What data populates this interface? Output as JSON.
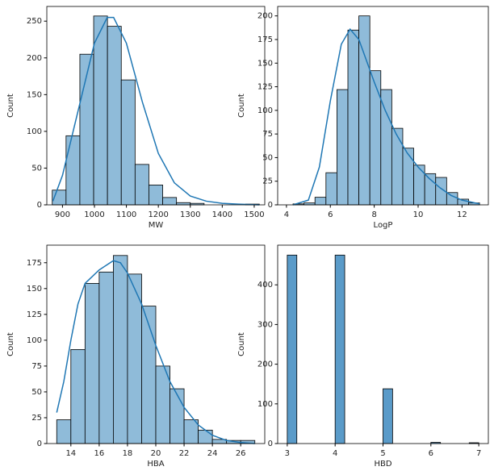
{
  "chart_data": [
    {
      "type": "histogram",
      "x_label": "MW",
      "y_label": "Count",
      "color": "#8fbbd9",
      "line_color": "#1f77b4",
      "bins": [
        868,
        911.2,
        954.4,
        997.6,
        1040.8,
        1084,
        1127.2,
        1170.4,
        1213.6,
        1256.8,
        1300,
        1343.2,
        1386.4,
        1429.6,
        1472.8,
        1516
      ],
      "values": [
        20,
        94,
        205,
        257,
        243,
        170,
        55,
        27,
        10,
        3,
        2,
        0,
        0,
        0,
        1
      ],
      "kde": {
        "x": [
          870,
          900,
          950,
          1000,
          1040,
          1060,
          1100,
          1150,
          1200,
          1250,
          1300,
          1350,
          1400,
          1450,
          1516
        ],
        "values": [
          5,
          40,
          130,
          220,
          255,
          255,
          220,
          140,
          70,
          30,
          12,
          5,
          2,
          1,
          0
        ]
      },
      "xlim": [
        851,
        1533
      ],
      "ylim": [
        0,
        270
      ],
      "xticks": [
        900,
        1000,
        1100,
        1200,
        1300,
        1400,
        1500
      ],
      "yticks": [
        0,
        50,
        100,
        150,
        200,
        250
      ]
    },
    {
      "type": "histogram",
      "x_label": "LogP",
      "y_label": "Count",
      "color": "#8fbbd9",
      "line_color": "#1f77b4",
      "bins": [
        4.3,
        4.8,
        5.3,
        5.8,
        6.3,
        6.8,
        7.3,
        7.8,
        8.3,
        8.8,
        9.3,
        9.8,
        10.3,
        10.8,
        11.3,
        11.8,
        12.3,
        12.8
      ],
      "values": [
        1,
        2,
        8,
        34,
        122,
        185,
        200,
        142,
        122,
        81,
        60,
        42,
        33,
        29,
        13,
        6,
        2
      ],
      "kde": {
        "x": [
          4.3,
          5,
          5.5,
          6,
          6.5,
          6.9,
          7.3,
          8,
          8.5,
          9,
          9.5,
          10,
          10.5,
          11,
          11.5,
          12,
          12.8
        ],
        "values": [
          0,
          5,
          40,
          110,
          170,
          186,
          175,
          130,
          100,
          75,
          55,
          40,
          28,
          18,
          10,
          5,
          1
        ]
      },
      "xlim": [
        3.6,
        13.2
      ],
      "ylim": [
        0,
        210
      ],
      "xticks": [
        4,
        6,
        8,
        10,
        12
      ],
      "yticks": [
        0,
        25,
        50,
        75,
        100,
        125,
        150,
        175,
        200
      ]
    },
    {
      "type": "histogram",
      "x_label": "HBA",
      "y_label": "Count",
      "color": "#8fbbd9",
      "line_color": "#1f77b4",
      "bins": [
        13,
        14,
        15,
        16,
        17,
        18,
        19,
        20,
        21,
        22,
        23,
        24,
        25,
        26,
        27
      ],
      "values": [
        23,
        91,
        155,
        166,
        182,
        164,
        133,
        75,
        53,
        23,
        13,
        4,
        3,
        3
      ],
      "kde": {
        "x": [
          13,
          13.5,
          14,
          14.5,
          15,
          16,
          17,
          17.5,
          18,
          19,
          20,
          21,
          22,
          23,
          24,
          25,
          26,
          27
        ],
        "values": [
          30,
          60,
          100,
          135,
          155,
          168,
          177,
          175,
          165,
          135,
          95,
          60,
          35,
          18,
          8,
          3,
          1,
          0
        ]
      },
      "xlim": [
        12.3,
        27.7
      ],
      "ylim": [
        0,
        192
      ],
      "xticks": [
        14,
        16,
        18,
        20,
        22,
        24,
        26
      ],
      "yticks": [
        0,
        25,
        50,
        75,
        100,
        125,
        150,
        175
      ]
    },
    {
      "type": "histogram",
      "x_label": "HBD",
      "y_label": "Count",
      "color": "#5a9bc9",
      "bins": [
        3,
        3.2,
        3.4,
        3.6,
        3.8,
        4,
        4.2,
        4.4,
        4.6,
        4.8,
        5,
        5.2,
        5.4,
        5.6,
        5.8,
        6,
        6.2,
        6.4,
        6.6,
        6.8,
        7
      ],
      "values": [
        475,
        0,
        0,
        0,
        0,
        475,
        0,
        0,
        0,
        0,
        138,
        0,
        0,
        0,
        0,
        3,
        0,
        0,
        0,
        2
      ],
      "xlim": [
        2.8,
        7.2
      ],
      "ylim": [
        0,
        500
      ],
      "xticks": [
        3,
        4,
        5,
        6,
        7
      ],
      "yticks": [
        0,
        100,
        200,
        300,
        400
      ]
    }
  ]
}
